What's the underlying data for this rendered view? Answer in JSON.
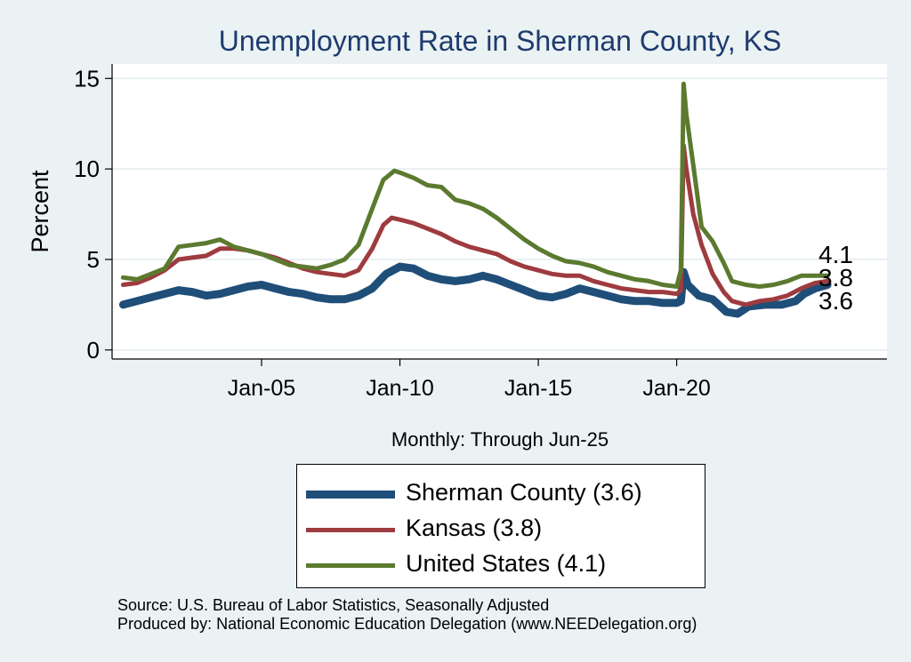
{
  "chart_data": {
    "type": "line",
    "title": "Unemployment Rate in Sherman  County, KS",
    "xlabel": "Monthly: Through Jun-25",
    "ylabel": "Percent",
    "ylim": [
      -0.5,
      15.8
    ],
    "xlim": [
      1999.6,
      2027.6
    ],
    "yticks": [
      0,
      5,
      10,
      15
    ],
    "xticks": [
      {
        "x": 2005,
        "label": "Jan-05"
      },
      {
        "x": 2010,
        "label": "Jan-10"
      },
      {
        "x": 2015,
        "label": "Jan-15"
      },
      {
        "x": 2020,
        "label": "Jan-20"
      }
    ],
    "grid": true,
    "end_labels": [
      "4.1",
      "3.8",
      "3.6"
    ],
    "series": [
      {
        "name": "Sherman  County",
        "legend": "Sherman  County (3.6)",
        "color": "#1f4e79",
        "points": [
          [
            2000.0,
            2.5
          ],
          [
            2000.5,
            2.7
          ],
          [
            2001.0,
            2.9
          ],
          [
            2001.5,
            3.1
          ],
          [
            2002.0,
            3.3
          ],
          [
            2002.5,
            3.2
          ],
          [
            2003.0,
            3.0
          ],
          [
            2003.5,
            3.1
          ],
          [
            2004.0,
            3.3
          ],
          [
            2004.5,
            3.5
          ],
          [
            2005.0,
            3.6
          ],
          [
            2005.5,
            3.4
          ],
          [
            2006.0,
            3.2
          ],
          [
            2006.5,
            3.1
          ],
          [
            2007.0,
            2.9
          ],
          [
            2007.5,
            2.8
          ],
          [
            2008.0,
            2.8
          ],
          [
            2008.5,
            3.0
          ],
          [
            2009.0,
            3.4
          ],
          [
            2009.5,
            4.2
          ],
          [
            2010.0,
            4.6
          ],
          [
            2010.5,
            4.5
          ],
          [
            2011.0,
            4.1
          ],
          [
            2011.5,
            3.9
          ],
          [
            2012.0,
            3.8
          ],
          [
            2012.5,
            3.9
          ],
          [
            2013.0,
            4.1
          ],
          [
            2013.5,
            3.9
          ],
          [
            2014.0,
            3.6
          ],
          [
            2014.5,
            3.3
          ],
          [
            2015.0,
            3.0
          ],
          [
            2015.5,
            2.9
          ],
          [
            2016.0,
            3.1
          ],
          [
            2016.5,
            3.4
          ],
          [
            2017.0,
            3.2
          ],
          [
            2017.5,
            3.0
          ],
          [
            2018.0,
            2.8
          ],
          [
            2018.5,
            2.7
          ],
          [
            2019.0,
            2.7
          ],
          [
            2019.5,
            2.6
          ],
          [
            2020.0,
            2.6
          ],
          [
            2020.15,
            2.7
          ],
          [
            2020.25,
            4.3
          ],
          [
            2020.4,
            3.6
          ],
          [
            2020.8,
            3.0
          ],
          [
            2021.3,
            2.8
          ],
          [
            2021.8,
            2.1
          ],
          [
            2022.2,
            2.0
          ],
          [
            2022.6,
            2.4
          ],
          [
            2023.2,
            2.5
          ],
          [
            2023.8,
            2.5
          ],
          [
            2024.3,
            2.7
          ],
          [
            2024.6,
            3.1
          ],
          [
            2025.0,
            3.4
          ],
          [
            2025.45,
            3.6
          ]
        ]
      },
      {
        "name": "Kansas",
        "legend": "Kansas (3.8)",
        "color": "#9e3b3f",
        "points": [
          [
            2000.0,
            3.6
          ],
          [
            2000.5,
            3.7
          ],
          [
            2001.0,
            4.0
          ],
          [
            2001.5,
            4.4
          ],
          [
            2002.0,
            5.0
          ],
          [
            2002.5,
            5.1
          ],
          [
            2003.0,
            5.2
          ],
          [
            2003.5,
            5.6
          ],
          [
            2004.0,
            5.6
          ],
          [
            2004.5,
            5.5
          ],
          [
            2005.0,
            5.3
          ],
          [
            2005.5,
            5.1
          ],
          [
            2006.0,
            4.8
          ],
          [
            2006.5,
            4.5
          ],
          [
            2007.0,
            4.3
          ],
          [
            2007.5,
            4.2
          ],
          [
            2008.0,
            4.1
          ],
          [
            2008.5,
            4.4
          ],
          [
            2009.0,
            5.6
          ],
          [
            2009.4,
            6.9
          ],
          [
            2009.7,
            7.3
          ],
          [
            2010.0,
            7.2
          ],
          [
            2010.5,
            7.0
          ],
          [
            2011.0,
            6.7
          ],
          [
            2011.5,
            6.4
          ],
          [
            2012.0,
            6.0
          ],
          [
            2012.5,
            5.7
          ],
          [
            2013.0,
            5.5
          ],
          [
            2013.5,
            5.3
          ],
          [
            2014.0,
            4.9
          ],
          [
            2014.5,
            4.6
          ],
          [
            2015.0,
            4.4
          ],
          [
            2015.5,
            4.2
          ],
          [
            2016.0,
            4.1
          ],
          [
            2016.5,
            4.1
          ],
          [
            2017.0,
            3.8
          ],
          [
            2017.5,
            3.6
          ],
          [
            2018.0,
            3.4
          ],
          [
            2018.5,
            3.3
          ],
          [
            2019.0,
            3.2
          ],
          [
            2019.5,
            3.2
          ],
          [
            2020.0,
            3.1
          ],
          [
            2020.15,
            3.3
          ],
          [
            2020.25,
            11.3
          ],
          [
            2020.35,
            10.0
          ],
          [
            2020.6,
            7.5
          ],
          [
            2020.9,
            5.8
          ],
          [
            2021.3,
            4.2
          ],
          [
            2021.7,
            3.2
          ],
          [
            2022.0,
            2.7
          ],
          [
            2022.5,
            2.5
          ],
          [
            2023.0,
            2.7
          ],
          [
            2023.5,
            2.8
          ],
          [
            2024.0,
            3.0
          ],
          [
            2024.5,
            3.4
          ],
          [
            2025.0,
            3.7
          ],
          [
            2025.45,
            3.8
          ]
        ]
      },
      {
        "name": "United States",
        "legend": "United States (4.1)",
        "color": "#5b7a2f",
        "points": [
          [
            2000.0,
            4.0
          ],
          [
            2000.5,
            3.9
          ],
          [
            2001.0,
            4.2
          ],
          [
            2001.5,
            4.5
          ],
          [
            2002.0,
            5.7
          ],
          [
            2002.5,
            5.8
          ],
          [
            2003.0,
            5.9
          ],
          [
            2003.5,
            6.1
          ],
          [
            2004.0,
            5.7
          ],
          [
            2004.5,
            5.5
          ],
          [
            2005.0,
            5.3
          ],
          [
            2005.5,
            5.0
          ],
          [
            2006.0,
            4.7
          ],
          [
            2006.5,
            4.6
          ],
          [
            2007.0,
            4.5
          ],
          [
            2007.5,
            4.7
          ],
          [
            2008.0,
            5.0
          ],
          [
            2008.5,
            5.8
          ],
          [
            2009.0,
            7.8
          ],
          [
            2009.4,
            9.4
          ],
          [
            2009.8,
            9.9
          ],
          [
            2010.0,
            9.8
          ],
          [
            2010.5,
            9.5
          ],
          [
            2011.0,
            9.1
          ],
          [
            2011.5,
            9.0
          ],
          [
            2012.0,
            8.3
          ],
          [
            2012.5,
            8.1
          ],
          [
            2013.0,
            7.8
          ],
          [
            2013.5,
            7.3
          ],
          [
            2014.0,
            6.7
          ],
          [
            2014.5,
            6.1
          ],
          [
            2015.0,
            5.6
          ],
          [
            2015.5,
            5.2
          ],
          [
            2016.0,
            4.9
          ],
          [
            2016.5,
            4.8
          ],
          [
            2017.0,
            4.6
          ],
          [
            2017.5,
            4.3
          ],
          [
            2018.0,
            4.1
          ],
          [
            2018.5,
            3.9
          ],
          [
            2019.0,
            3.8
          ],
          [
            2019.5,
            3.6
          ],
          [
            2020.0,
            3.5
          ],
          [
            2020.15,
            4.4
          ],
          [
            2020.25,
            14.7
          ],
          [
            2020.35,
            13.0
          ],
          [
            2020.6,
            10.2
          ],
          [
            2020.9,
            6.8
          ],
          [
            2021.3,
            6.0
          ],
          [
            2021.7,
            4.8
          ],
          [
            2022.0,
            3.8
          ],
          [
            2022.5,
            3.6
          ],
          [
            2023.0,
            3.5
          ],
          [
            2023.5,
            3.6
          ],
          [
            2024.0,
            3.8
          ],
          [
            2024.5,
            4.1
          ],
          [
            2025.0,
            4.1
          ],
          [
            2025.45,
            4.1
          ]
        ]
      }
    ]
  },
  "source_line": "Source: U.S. Bureau of Labor Statistics, Seasonally Adjusted",
  "produced_line": "Produced by: National Economic Education Delegation (www.NEEDelegation.org)"
}
